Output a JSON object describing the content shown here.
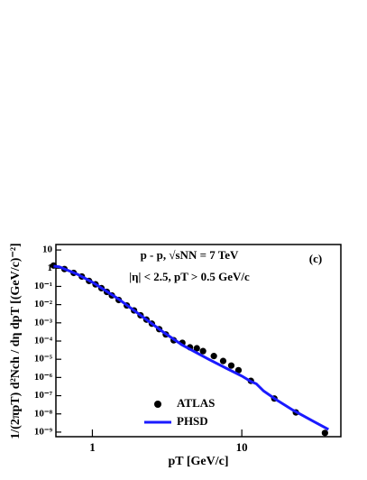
{
  "chart_data": {
    "type": "scatter",
    "title": "p - p,  √sNN = 7 TeV",
    "subtitle": "|η| < 2.5,  pT > 0.5 GeV/c",
    "annotation": "(c)",
    "xlabel": "pT [GeV/c]",
    "ylabel": "1/(2πpT) d²Nch / dη dpT [(GeV/c)⁻²]",
    "xlog": true,
    "ylog": true,
    "xlim": [
      0.57,
      46
    ],
    "ylim": [
      5.6e-10,
      20
    ],
    "xticks": [
      1,
      10
    ],
    "yticks": [
      10,
      1,
      {
        "value": 0.1,
        "label": "10⁻¹"
      },
      {
        "value": 0.01,
        "label": "10⁻²"
      },
      {
        "value": 0.001,
        "label": "10⁻³"
      },
      {
        "value": 0.0001,
        "label": "10⁻⁴"
      },
      {
        "value": 1e-05,
        "label": "10⁻⁵"
      },
      {
        "value": 1e-06,
        "label": "10⁻⁶"
      },
      {
        "value": 1e-07,
        "label": "10⁻⁷"
      },
      {
        "value": 1e-08,
        "label": "10⁻⁸"
      },
      {
        "value": 1e-09,
        "label": "10⁻⁹"
      }
    ],
    "series": [
      {
        "name": "ATLAS",
        "type": "scatter",
        "color": "#000000",
        "x": [
          0.55,
          0.65,
          0.75,
          0.85,
          0.95,
          1.05,
          1.15,
          1.25,
          1.35,
          1.5,
          1.7,
          1.9,
          2.1,
          2.3,
          2.5,
          2.8,
          3.1,
          3.5,
          4.0,
          4.5,
          5.0,
          5.5,
          6.5,
          7.5,
          8.5,
          9.5,
          11.5,
          16.5,
          23,
          36
        ],
        "values": [
          1.4,
          0.9,
          0.55,
          0.35,
          0.2,
          0.13,
          0.08,
          0.05,
          0.032,
          0.018,
          0.009,
          0.0048,
          0.0026,
          0.0015,
          0.0009,
          0.00045,
          0.00023,
          0.00011,
          8e-05,
          4.5e-05,
          4e-05,
          2.8e-05,
          1.5e-05,
          8e-06,
          4.5e-06,
          2.5e-06,
          6.5e-07,
          7e-08,
          1.2e-08,
          9e-10
        ]
      },
      {
        "name": "PHSD",
        "type": "line",
        "color": "#1a1aff",
        "x": [
          0.55,
          0.6,
          0.8,
          1,
          1.5,
          2,
          3,
          4,
          6,
          8,
          10,
          11.5,
          12.5,
          14,
          17,
          22,
          30,
          38
        ],
        "values": [
          1.3,
          1.2,
          0.45,
          0.17,
          0.02,
          0.0035,
          0.0003,
          6e-05,
          1e-05,
          3e-06,
          1.2e-06,
          6e-07,
          4.5e-07,
          1.8e-07,
          6e-08,
          1.6e-08,
          4e-09,
          1.4e-09
        ]
      }
    ]
  }
}
